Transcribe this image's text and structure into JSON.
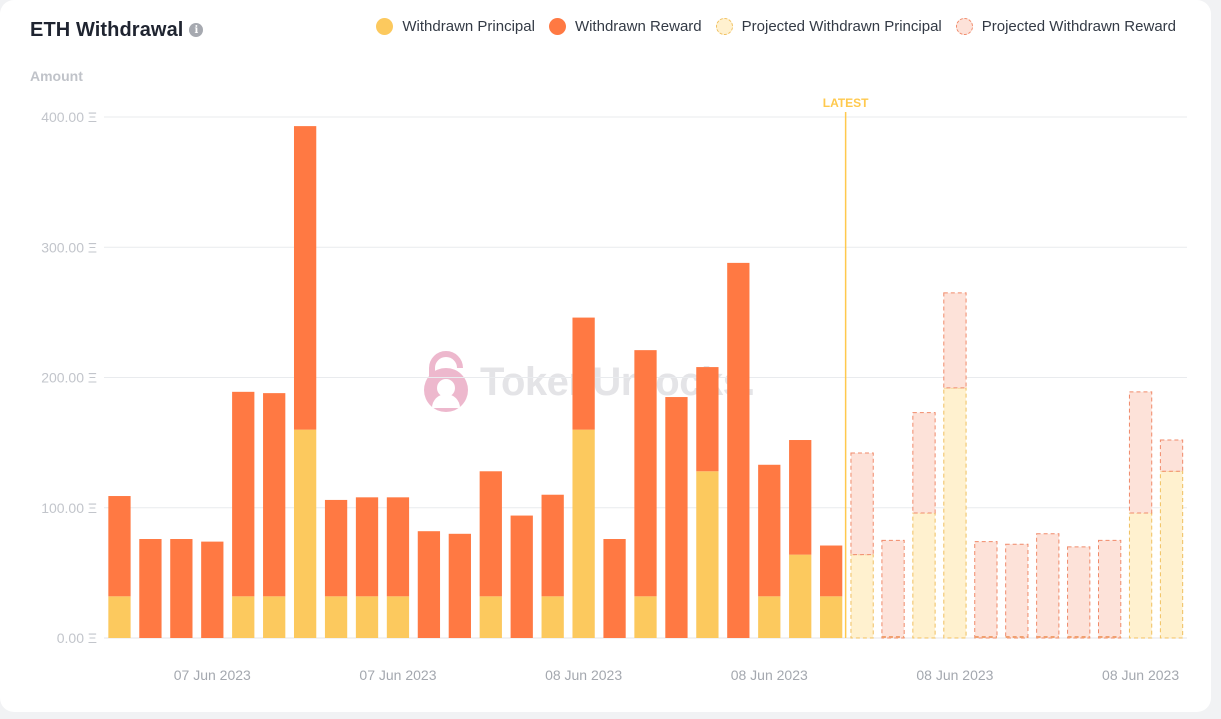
{
  "header": {
    "title": "ETH Withdrawal",
    "info_icon": "info-icon"
  },
  "legend": [
    {
      "key": "withdrawn_principal",
      "label": "Withdrawn Principal",
      "color": "#fcc95e"
    },
    {
      "key": "withdrawn_reward",
      "label": "Withdrawn Reward",
      "color": "#ff7943"
    },
    {
      "key": "projected_principal",
      "label": "Projected Withdrawn Principal",
      "color": "#fff1cf"
    },
    {
      "key": "projected_reward",
      "label": "Projected Withdrawn Reward",
      "color": "#fde2d9"
    }
  ],
  "watermark": "TokenUnlocks.",
  "chart_data": {
    "type": "bar",
    "stacked": true,
    "title": "ETH Withdrawal",
    "ylabel": "Amount",
    "ylim": [
      0,
      400
    ],
    "yticks": [
      "0.00 Ξ",
      "100.00 Ξ",
      "200.00 Ξ",
      "300.00 Ξ",
      "400.00 Ξ"
    ],
    "grid": true,
    "legend_position": "top-right",
    "x_tick_labels": [
      "07 Jun 2023",
      "07 Jun 2023",
      "08 Jun 2023",
      "08 Jun 2023",
      "08 Jun 2023",
      "08 Jun 2023"
    ],
    "latest_marker": {
      "label": "LATEST",
      "after_bar": 24,
      "color": "#ffc94d"
    },
    "series": [
      {
        "name": "Withdrawn Principal",
        "color": "#fcc95e",
        "values": [
          32,
          0,
          0,
          0,
          32,
          32,
          160,
          32,
          32,
          32,
          0,
          0,
          32,
          0,
          32,
          160,
          0,
          32,
          0,
          128,
          0,
          32,
          64,
          32,
          0,
          0,
          0,
          0,
          0,
          0,
          0,
          0,
          0,
          0,
          0
        ]
      },
      {
        "name": "Withdrawn Reward",
        "color": "#ff7943",
        "values": [
          77,
          76,
          76,
          74,
          157,
          156,
          233,
          74,
          76,
          76,
          82,
          80,
          96,
          94,
          78,
          86,
          76,
          189,
          185,
          80,
          288,
          101,
          88,
          39,
          0,
          0,
          0,
          0,
          0,
          0,
          0,
          0,
          0,
          0,
          0
        ]
      },
      {
        "name": "Projected Withdrawn Principal",
        "color": "#fff1cf",
        "values": [
          0,
          0,
          0,
          0,
          0,
          0,
          0,
          0,
          0,
          0,
          0,
          0,
          0,
          0,
          0,
          0,
          0,
          0,
          0,
          0,
          0,
          0,
          0,
          0,
          64,
          0,
          96,
          192,
          0,
          0,
          0,
          0,
          0,
          96,
          128
        ]
      },
      {
        "name": "Projected Withdrawn Reward",
        "color": "#fde2d9",
        "values": [
          0,
          0,
          0,
          0,
          0,
          0,
          0,
          0,
          0,
          0,
          0,
          0,
          0,
          0,
          0,
          0,
          0,
          0,
          0,
          0,
          0,
          0,
          0,
          0,
          78,
          75,
          77,
          73,
          74,
          72,
          80,
          70,
          75,
          93,
          24
        ]
      }
    ]
  }
}
